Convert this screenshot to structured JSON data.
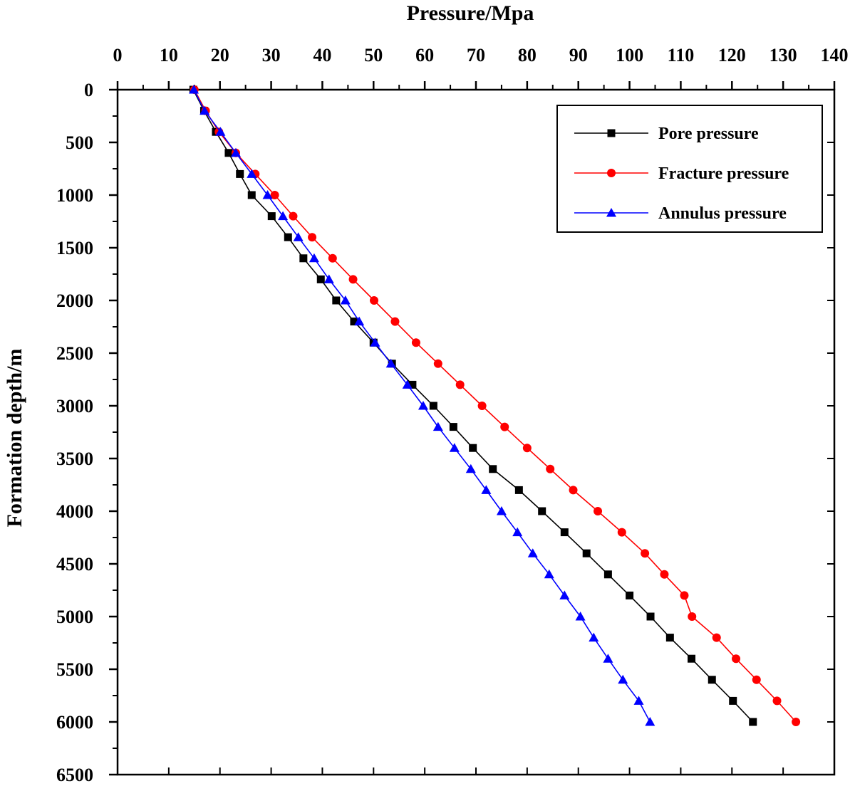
{
  "chart_data": {
    "type": "line",
    "xlabel": "Pressure/Mpa",
    "ylabel": "Formation depth/m",
    "xlim": [
      0,
      140
    ],
    "ylim": [
      0,
      6500
    ],
    "x_axis_position": "top",
    "y_axis_inverted": true,
    "grid": false,
    "legend_position": "top-right",
    "x_ticks": [
      "0",
      "10",
      "20",
      "30",
      "40",
      "50",
      "60",
      "70",
      "80",
      "90",
      "100",
      "110",
      "120",
      "130",
      "140"
    ],
    "y_ticks": [
      "0",
      "500",
      "1000",
      "1500",
      "2000",
      "2500",
      "3000",
      "3500",
      "4000",
      "4500",
      "5000",
      "5500",
      "6000",
      "6500"
    ],
    "depth": [
      0,
      200,
      400,
      600,
      800,
      1000,
      1200,
      1400,
      1600,
      1800,
      2000,
      2200,
      2400,
      2600,
      2800,
      3000,
      3200,
      3400,
      3600,
      3800,
      4000,
      4200,
      4400,
      4600,
      4800,
      5000,
      5200,
      5400,
      5600,
      5800,
      6000
    ],
    "series": [
      {
        "name": "Pore pressure",
        "color": "#000000",
        "marker": "square",
        "values": [
          14.8,
          16.9,
          19.2,
          21.7,
          23.9,
          26.2,
          30.1,
          33.3,
          36.3,
          39.7,
          42.7,
          46.2,
          50.0,
          53.6,
          57.6,
          61.7,
          65.6,
          69.4,
          73.3,
          78.4,
          82.9,
          87.3,
          91.6,
          95.8,
          100.0,
          104.1,
          107.9,
          112.1,
          116.1,
          120.2,
          124.1
        ]
      },
      {
        "name": "Fracture pressure",
        "color": "#ff0000",
        "marker": "circle",
        "values": [
          15.0,
          17.2,
          19.8,
          23.1,
          26.9,
          30.7,
          34.3,
          38.0,
          42.0,
          46.0,
          50.1,
          54.2,
          58.3,
          62.6,
          66.9,
          71.2,
          75.6,
          80.0,
          84.5,
          89.0,
          93.8,
          98.5,
          103.0,
          106.8,
          110.7,
          112.2,
          117.0,
          120.8,
          124.8,
          128.8,
          132.5
        ]
      },
      {
        "name": "Annulus pressure",
        "color": "#0000ff",
        "marker": "triangle",
        "values": [
          14.9,
          17.0,
          20.1,
          23.1,
          26.2,
          29.3,
          32.3,
          35.3,
          38.4,
          41.3,
          44.5,
          47.2,
          50.3,
          53.4,
          56.6,
          59.7,
          62.6,
          65.8,
          69.0,
          72.0,
          75.0,
          78.1,
          81.1,
          84.3,
          87.3,
          90.4,
          93.0,
          95.8,
          98.7,
          101.8,
          104.0
        ]
      }
    ]
  }
}
